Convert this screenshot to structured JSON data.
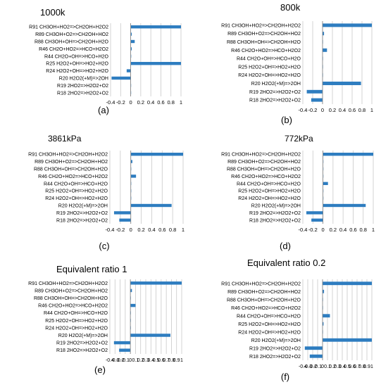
{
  "colors": {
    "bar": "#2E7DC0",
    "grid": "#C8C8C8",
    "axis": "#7F7F7F",
    "text": "#000000"
  },
  "reactions": [
    "R91 CH3OH+HO2=>CH2OH+H2O2",
    "R89 CH3OH+O2=>CH2OH+HO2",
    "R88 CH3OH+OH=>CH2OH+H2O",
    "R46 CH2O+HO2=>HCO+H2O2",
    "R44 CH2O+OH=>HCO+H2O",
    "R25 H2O2+OH=>HO2+H2O",
    "R24 H2O2+OH=>HO2+H2O",
    "R20 H2O2(+M)=>2OH",
    "R19 2HO2=>H2O2+O2",
    "R18 2HO2=>H2O2+O2"
  ],
  "chart_data": [
    {
      "type": "bar",
      "panel": "(a)",
      "title": "1000k",
      "xlim": [
        -0.4,
        1
      ],
      "x_ticks": [
        "-0.4",
        "-0.2",
        "0",
        "0.2",
        "0.4",
        "0.6",
        "0.8",
        "1"
      ],
      "categories": [
        "R91 CH3OH+HO2=>CH2OH+H2O2",
        "R89 CH3OH+O2=>CH2OH+HO2",
        "R88 CH3OH+OH=>CH2OH+H2O",
        "R46 CH2O+HO2=>HCO+H2O2",
        "R44 CH2O+OH=>HCO+H2O",
        "R25 H2O2+OH=>HO2+H2O",
        "R24 H2O2+OH=>HO2+H2O",
        "R20 H2O2(+M)=>2OH",
        "R19 2HO2=>H2O2+O2",
        "R18 2HO2=>H2O2+O2"
      ],
      "values": [
        1.0,
        0.02,
        0.08,
        0.02,
        0.01,
        1.0,
        -0.08,
        -0.38,
        0.0,
        0.0
      ]
    },
    {
      "type": "bar",
      "panel": "(b)",
      "title": "800k",
      "xlim": [
        -0.4,
        1
      ],
      "x_ticks": [
        "-0.4",
        "-0.2",
        "0",
        "0.2",
        "0.4",
        "0.6",
        "0.8",
        "1"
      ],
      "categories": [
        "R91 CH3OH+HO2=>CH2OH+H2O2",
        "R89 CH3OH+O2=>CH2OH+HO2",
        "R88 CH3OH+OH=>CH2OH+H2O",
        "R46 CH2O+HO2=>HCO+H2O2",
        "R44 CH2O+OH=>HCO+H2O",
        "R25 H2O2+OH=>HO2+H2O",
        "R24 H2O2+OH=>HO2+H2O",
        "R20 H2O2(+M)=>2OH",
        "R19 2HO2=>H2O2+O2",
        "R18 2HO2=>H2O2+O2"
      ],
      "values": [
        1.0,
        0.03,
        0.0,
        0.09,
        0.0,
        0.0,
        0.0,
        0.78,
        -0.32,
        -0.23
      ]
    },
    {
      "type": "bar",
      "panel": "(c)",
      "title": "3861kPa",
      "xlim": [
        -0.4,
        1
      ],
      "x_ticks": [
        "-0.4",
        "-0.2",
        "0",
        "0.2",
        "0.4",
        "0.6",
        "0.8",
        "1"
      ],
      "categories": [
        "R91 CH3OH+HO2=>CH2OH+H2O2",
        "R89 CH3OH+O2=>CH2OH+HO2",
        "R88 CH3OH+OH=>CH2OH+H2O",
        "R46 CH2O+HO2=>HCO+H2O2",
        "R44 CH2O+OH=>HCO+H2O",
        "R25 H2O2+OH=>HO2+H2O",
        "R24 H2O2+OH=>HO2+H2O",
        "R20 H2O2(+M)=>2OH",
        "R19 2HO2=>H2O2+O2",
        "R18 2HO2=>H2O2+O2"
      ],
      "values": [
        1.0,
        0.03,
        0.0,
        0.1,
        0.0,
        0.0,
        0.0,
        0.78,
        -0.32,
        -0.22
      ]
    },
    {
      "type": "bar",
      "panel": "(d)",
      "title": "772kPa",
      "xlim": [
        -0.4,
        1
      ],
      "x_ticks": [
        "-0.4",
        "-0.2",
        "0",
        "0.2",
        "0.4",
        "0.6",
        "0.8",
        "1"
      ],
      "categories": [
        "R91 CH3OH+HO2=>CH2OH+H2O2",
        "R89 CH3OH+O2=>CH2OH+HO2",
        "R88 CH3OH+OH=>CH2OH+H2O",
        "R46 CH2O+HO2=>HCO+H2O2",
        "R44 CH2O+OH=>HCO+H2O",
        "R25 H2O2+OH=>HO2+H2O",
        "R24 H2O2+OH=>HO2+H2O",
        "R20 H2O2(+M)=>2OH",
        "R19 2HO2=>H2O2+O2",
        "R18 2HO2=>H2O2+O2"
      ],
      "values": [
        1.0,
        0.0,
        0.0,
        0.0,
        0.1,
        0.0,
        0.0,
        0.85,
        -0.33,
        -0.23
      ]
    },
    {
      "type": "bar",
      "panel": "(e)",
      "title": "Equivalent ratio 1",
      "xlim": [
        -0.4,
        1
      ],
      "x_ticks": [
        "-0.4",
        "-0.3",
        "-0.2",
        "-0.1",
        "0",
        "0.1",
        "0.2",
        "0.3",
        "0.4",
        "0.5",
        "0.6",
        "0.7",
        "0.8",
        "0.9",
        "1"
      ],
      "categories": [
        "R91 CH3OH+HO2=>CH2OH+H2O2",
        "R89 CH3OH+O2=>CH2OH+HO2",
        "R88 CH3OH+OH=>CH2OH+H2O",
        "R46 CH2O+HO2=>HCO+H2O2",
        "R44 CH2O+OH=>HCO+H2O",
        "R25 H2O2+OH=>HO2+H2O",
        "R24 H2O2+OH=>HO2+H2O",
        "R20 H2O2(+M)=>2OH",
        "R19 2HO2=>H2O2+O2",
        "R18 2HO2=>H2O2+O2"
      ],
      "values": [
        1.0,
        0.03,
        0.0,
        0.1,
        0.0,
        0.0,
        0.0,
        0.78,
        -0.32,
        -0.22
      ]
    },
    {
      "type": "bar",
      "panel": "(f)",
      "title": "Equivalent ratio  0.2",
      "xlim": [
        -0.4,
        1
      ],
      "x_ticks": [
        "-0.4",
        "-0.3",
        "-0.2",
        "-0.1",
        "0",
        "0.1",
        "0.2",
        "0.3",
        "0.4",
        "0.5",
        "0.6",
        "0.7",
        "0.8",
        "0.9",
        "1"
      ],
      "categories": [
        "R91 CH3OH+HO2=>CH2OH+H2O2",
        "R89 CH3OH+O2=>CH2OH+HO2",
        "R88 CH3OH+OH=>CH2OH+H2O",
        "R46 CH2O+HO2=>HCO+H2O2",
        "R44 CH2O+OH=>HCO+H2O",
        "R25 H2O2+OH=>HO2+H2O",
        "R24 H2O2+OH=>HO2+H2O",
        "R20 H2O2(+M)=>2OH",
        "R19 2HO2=>H2O2+O2",
        "R18 2HO2=>H2O2+O2"
      ],
      "values": [
        1.0,
        0.03,
        0.0,
        0.0,
        0.15,
        0.02,
        0.0,
        1.0,
        -0.36,
        -0.26
      ]
    }
  ]
}
